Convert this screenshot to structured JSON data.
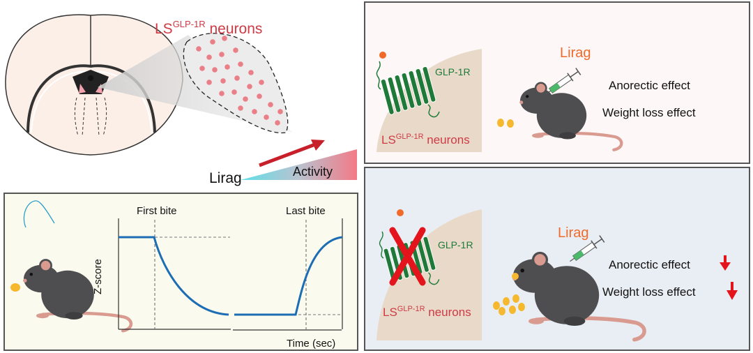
{
  "brain_panel": {
    "title_main": "LS",
    "title_sup": "GLP-1R",
    "title_rest": " neurons",
    "drug_label": "Lirag",
    "activity_label": "Activity"
  },
  "photometry_panel": {
    "first_bite_label": "First bite",
    "last_bite_label": "Last bite",
    "y_axis_label": "Z-score",
    "x_axis_label": "Time (sec)"
  },
  "intact_panel": {
    "receptor_label": "GLP-1R",
    "neurons_main": "LS",
    "neurons_sup": "GLP-1R",
    "neurons_rest": " neurons",
    "drug_label": "Lirag",
    "effect_1": "Anorectic effect",
    "effect_2": "Weight loss effect"
  },
  "knockout_panel": {
    "receptor_label": "GLP-1R",
    "neurons_main": "LS",
    "neurons_sup": "GLP-1R",
    "neurons_rest": " neurons",
    "drug_label": "Lirag",
    "effect_1": "Anorectic effect",
    "effect_2": "Weight loss effect",
    "effect_1_direction": "decrease",
    "effect_2_direction": "decrease"
  },
  "colors": {
    "neuron_red": "#cf3a45",
    "drug_orange": "#f06a2a",
    "receptor_green": "#1f7a3a",
    "trace_blue": "#1c6db3",
    "arrow_red": "#e3141b"
  },
  "icons": [
    "mouse-icon",
    "syringe-icon",
    "receptor-icon",
    "cross-icon",
    "food-pellet-icon",
    "down-arrow-icon"
  ]
}
